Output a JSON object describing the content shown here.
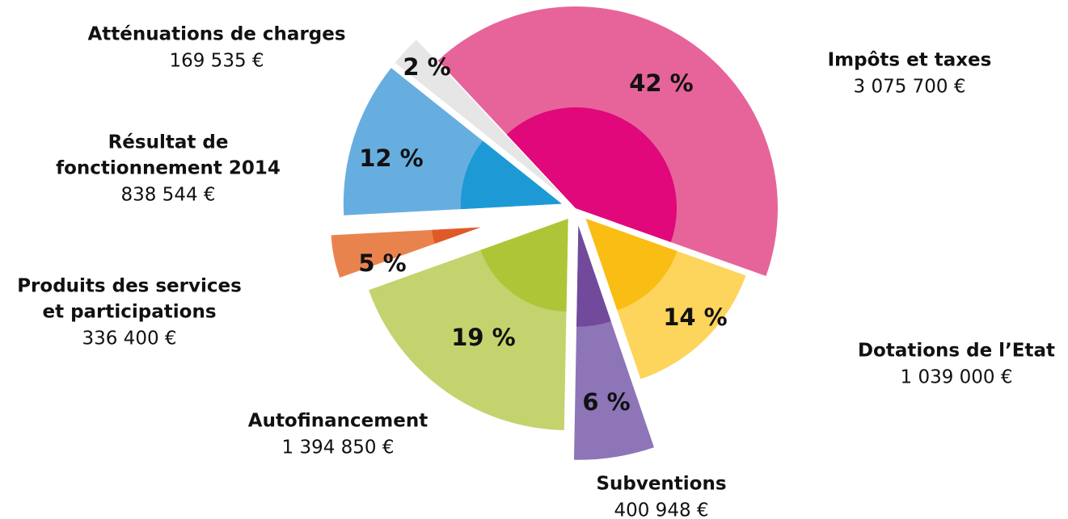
{
  "chart_data": {
    "type": "pie",
    "labels": [
      [
        "Impôts et taxes"
      ],
      [
        "Dotations de l’Etat"
      ],
      [
        "Subventions"
      ],
      [
        "Autofinancement"
      ],
      [
        "Produits des services",
        "et participations"
      ],
      [
        "Résultat de",
        "fonctionnement 2014"
      ],
      [
        "Atténuations de charges"
      ]
    ],
    "values": [
      3075700,
      1039000,
      400948,
      1394850,
      336400,
      838544,
      169535
    ],
    "value_labels": [
      "3 075 700 €",
      "1 039 000 €",
      "400 948 €",
      "1 394 850 €",
      "336 400 €",
      "838 544 €",
      "169 535 €"
    ],
    "percent_labels": [
      "42 %",
      "14 %",
      "6 %",
      "19 %",
      "5 %",
      "12 %",
      "2 %"
    ],
    "colors": [
      "#e6649a",
      "#fdd45c",
      "#8d75b8",
      "#c4d36e",
      "#e9834e",
      "#67aee0",
      "#e6e6e6"
    ],
    "inner_colors": [
      "#e0087a",
      "#f9bd14",
      "#714a9c",
      "#aec537",
      "#e05a27",
      "#1d9ad6",
      "#e6e6e6"
    ]
  }
}
